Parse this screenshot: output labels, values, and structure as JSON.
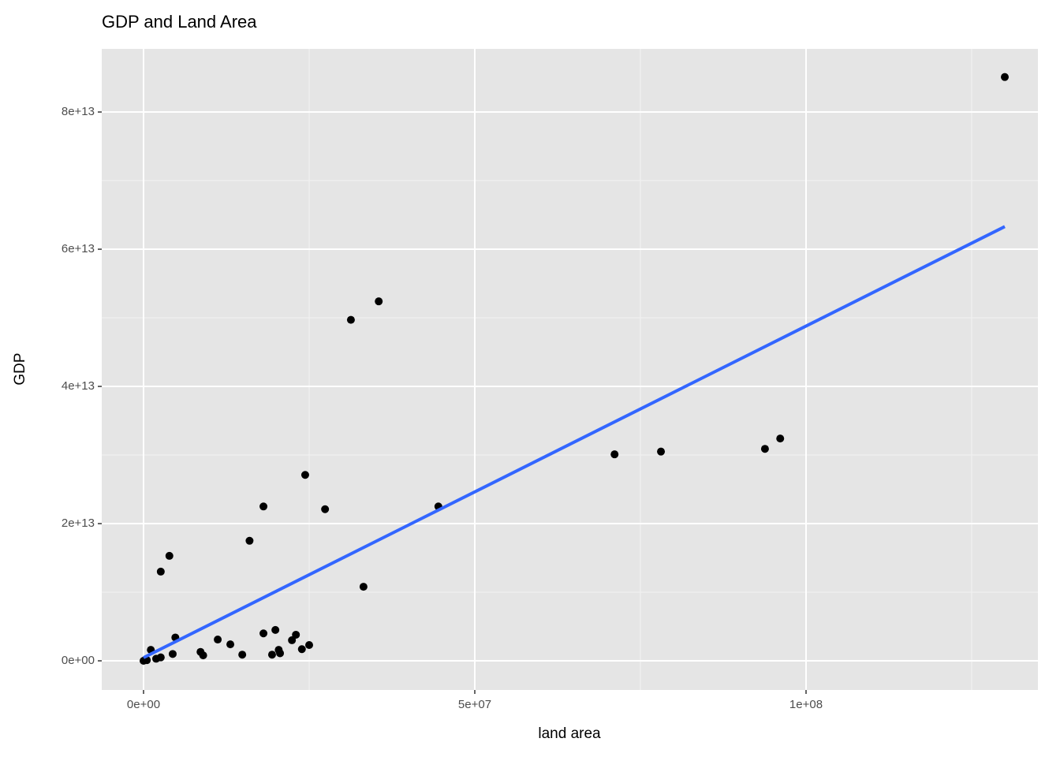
{
  "chart_data": {
    "type": "scatter",
    "title": "GDP and Land Area",
    "x_label": "land area",
    "y_label": "GDP",
    "x": [
      130000000,
      35500000,
      31300000,
      24400000,
      18100000,
      27400000,
      44500000,
      16000000,
      3900000,
      2600000,
      33200000,
      71100000,
      78100000,
      93800000,
      96100000,
      4800000,
      1100000,
      0,
      500000,
      1900000,
      2600000,
      4400000,
      8600000,
      9000000,
      11200000,
      13100000,
      14900000,
      18100000,
      19900000,
      19400000,
      20400000,
      20600000,
      22400000,
      23000000,
      23900000,
      25000000
    ],
    "y": [
      85100000000000,
      52400000000000,
      49700000000000,
      27100000000000,
      22500000000000,
      22100000000000,
      22500000000000,
      17500000000000,
      15300000000000,
      13000000000000,
      10800000000000,
      30100000000000,
      30500000000000,
      30900000000000,
      32400000000000,
      3400000000000,
      1600000000000,
      0,
      100000000000,
      300000000000,
      500000000000,
      1000000000000,
      1300000000000,
      800000000000,
      3100000000000,
      2400000000000,
      900000000000,
      4000000000000,
      4500000000000,
      900000000000,
      1600000000000,
      1100000000000,
      3000000000000,
      3800000000000,
      1700000000000,
      2300000000000
    ],
    "color": "#000000",
    "trend": {
      "x": [
        0,
        130000000
      ],
      "y": [
        460000000000,
        63300000000000
      ],
      "color": "#3366ff"
    },
    "xlim": [
      -6310000,
      135000000
    ],
    "ylim": [
      -4250000000000,
      89200000000000
    ],
    "xticks": [
      {
        "value": 0,
        "label": "0e+00"
      },
      {
        "value": 50000000,
        "label": "5e+07"
      },
      {
        "value": 100000000,
        "label": "1e+08"
      }
    ],
    "yticks": [
      {
        "value": 0,
        "label": "0e+00"
      },
      {
        "value": 20000000000000,
        "label": "2e+13"
      },
      {
        "value": 40000000000000,
        "label": "4e+13"
      },
      {
        "value": 60000000000000,
        "label": "6e+13"
      },
      {
        "value": 80000000000000,
        "label": "8e+13"
      }
    ],
    "grid": true
  }
}
